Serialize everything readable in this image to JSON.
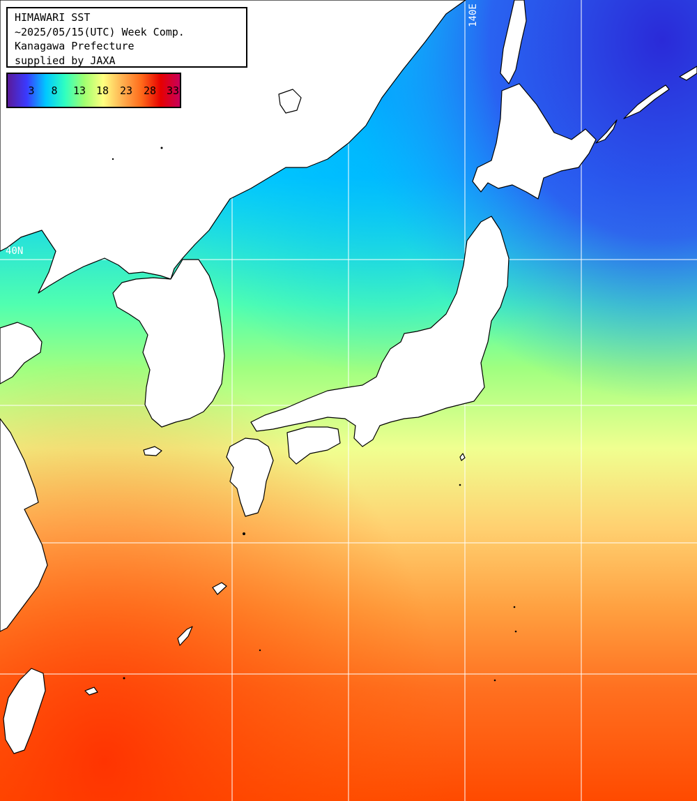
{
  "map": {
    "title_lines": [
      "HIMAWARI SST",
      "~2025/05/15(UTC) Week Comp.",
      "Kanagawa Prefecture",
      "supplied by JAXA"
    ],
    "colorbar": {
      "ticks": [
        "3",
        "8",
        "13",
        "18",
        "23",
        "28",
        "33"
      ],
      "colors": [
        "#5a1a9a",
        "#3a3aff",
        "#00c8ff",
        "#30ffc0",
        "#a0ff70",
        "#ffff80",
        "#ffb050",
        "#ff6a1a",
        "#e60000",
        "#c8005a"
      ]
    },
    "graticule": {
      "lon_label": "140E",
      "lat_label": "40N"
    },
    "colors": {
      "land": "#ffffff",
      "coastline": "#000000",
      "gridline": "#ffffff"
    }
  }
}
